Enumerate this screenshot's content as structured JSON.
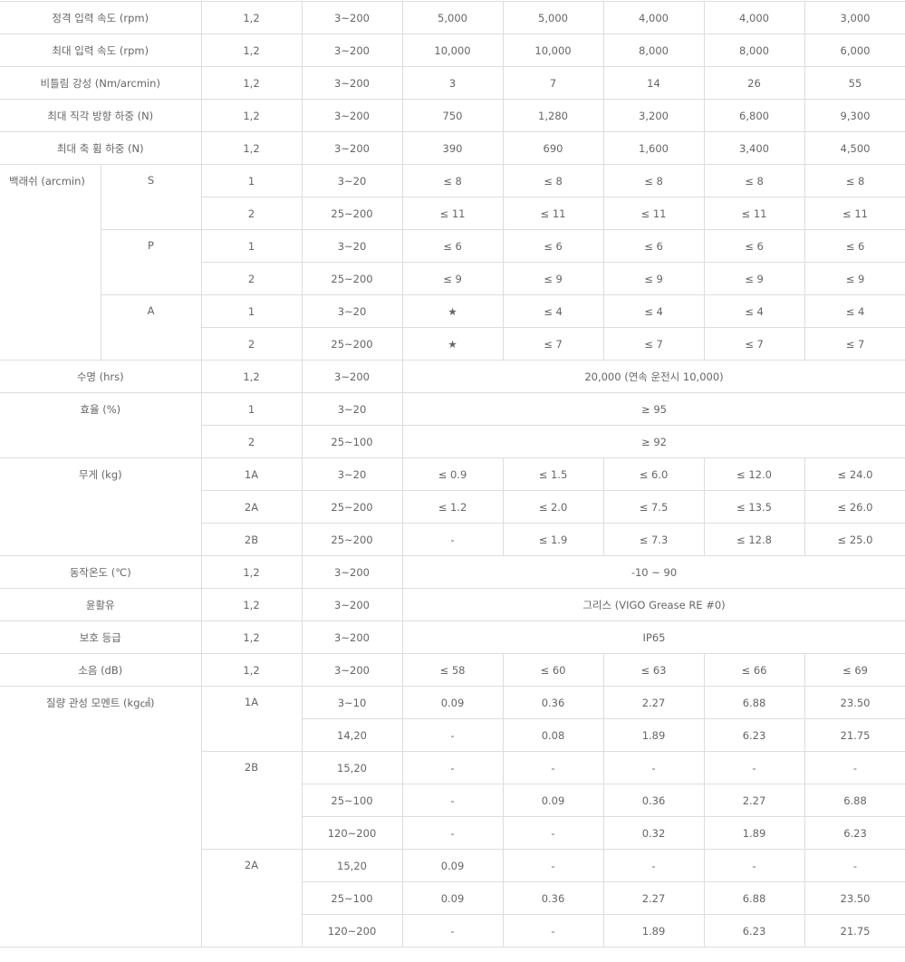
{
  "rows": [
    [
      "정격 입력 속도 (rpm)",
      "1,2",
      "3~200",
      "5,000",
      "5,000",
      "4,000",
      "4,000",
      "3,000"
    ],
    [
      "최대 입력 속도 (rpm)",
      "1,2",
      "3~200",
      "10,000",
      "10,000",
      "8,000",
      "8,000",
      "6,000"
    ],
    [
      "비틀림 강성 (Nm/arcmin)",
      "1,2",
      "3~200",
      "3",
      "7",
      "14",
      "26",
      "55"
    ],
    [
      "최대 직각 방향 하중 (N)",
      "1,2",
      "3~200",
      "750",
      "1,280",
      "3,200",
      "6,800",
      "9,300"
    ],
    [
      "최대 축 휨 하중 (N)",
      "1,2",
      "3~200",
      "390",
      "690",
      "1,600",
      "3,400",
      "4,500"
    ],
    [
      "백래쉬 (arcmin)",
      "S",
      "1",
      "3~20",
      "≤ 8",
      "≤ 8",
      "≤ 8",
      "≤ 8",
      "≤ 8"
    ],
    [
      "2",
      "25~200",
      "≤ 11",
      "≤ 11",
      "≤ 11",
      "≤ 11",
      "≤ 11"
    ],
    [
      "P",
      "1",
      "3~20",
      "≤ 6",
      "≤ 6",
      "≤ 6",
      "≤ 6",
      "≤ 6"
    ],
    [
      "2",
      "25~200",
      "≤ 9",
      "≤ 9",
      "≤ 9",
      "≤ 9",
      "≤ 9"
    ],
    [
      "A",
      "1",
      "3~20",
      "★",
      "≤ 4",
      "≤ 4",
      "≤ 4",
      "≤ 4"
    ],
    [
      "2",
      "25~200",
      "★",
      "≤ 7",
      "≤ 7",
      "≤ 7",
      "≤ 7"
    ],
    [
      "수명 (hrs)",
      "1,2",
      "3~200",
      "20,000 (연속 운전시 10,000)"
    ],
    [
      "효율 (%)",
      "1",
      "3~20",
      "≥ 95"
    ],
    [
      "2",
      "25~100",
      "≥ 92"
    ],
    [
      "무게 (kg)",
      "1A",
      "3~20",
      "≤ 0.9",
      "≤ 1.5",
      "≤ 6.0",
      "≤ 12.0",
      "≤ 24.0"
    ],
    [
      "2A",
      "25~200",
      "≤ 1.2",
      "≤ 2.0",
      "≤ 7.5",
      "≤ 13.5",
      "≤ 26.0"
    ],
    [
      "2B",
      "25~200",
      "-",
      "≤ 1.9",
      "≤ 7.3",
      "≤ 12.8",
      "≤ 25.0"
    ],
    [
      "동작온도 (℃)",
      "1,2",
      "3~200",
      "-10 ~ 90"
    ],
    [
      "윤활유",
      "1,2",
      "3~200",
      "그리스 (VIGO Grease RE #0)"
    ],
    [
      "보호 등급",
      "1,2",
      "3~200",
      "IP65"
    ],
    [
      "소음 (dB)",
      "1,2",
      "3~200",
      "≤ 58",
      "≤ 60",
      "≤ 63",
      "≤ 66",
      "≤ 69"
    ],
    [
      "질량 관성 모멘트 (kg㎠)",
      "1A",
      "3~10",
      "0.09",
      "0.36",
      "2.27",
      "6.88",
      "23.50"
    ],
    [
      "14,20",
      "-",
      "0.08",
      "1.89",
      "6.23",
      "21.75"
    ],
    [
      "2B",
      "15,20",
      "-",
      "-",
      "-",
      "-",
      "-"
    ],
    [
      "25~100",
      "-",
      "0.09",
      "0.36",
      "2.27",
      "6.88"
    ],
    [
      "120~200",
      "-",
      "-",
      "0.32",
      "1.89",
      "6.23"
    ],
    [
      "2A",
      "15,20",
      "0.09",
      "-",
      "-",
      "-",
      "-"
    ],
    [
      "25~100",
      "0.09",
      "0.36",
      "2.27",
      "6.88",
      "23.50"
    ],
    [
      "120~200",
      "-",
      "-",
      "1.89",
      "6.23",
      "21.75"
    ]
  ]
}
